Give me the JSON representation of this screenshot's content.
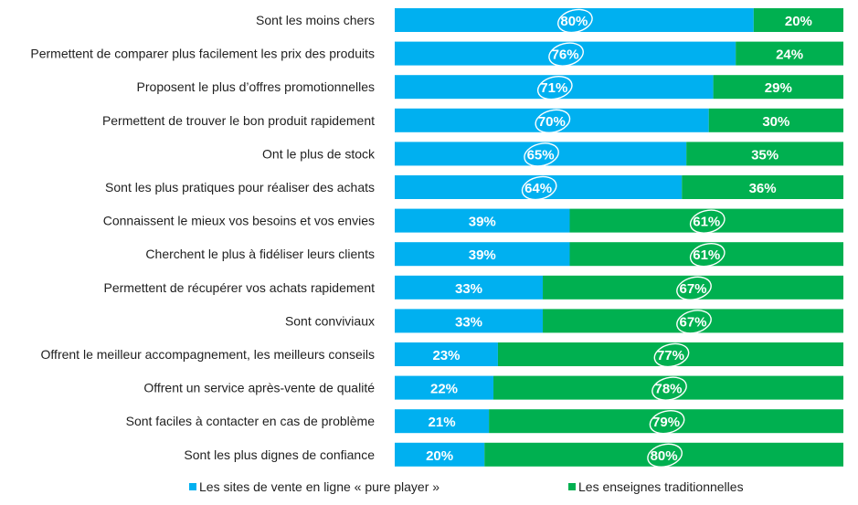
{
  "chart_data": {
    "type": "bar",
    "orientation": "horizontal",
    "stacked": true,
    "percent_stacked": true,
    "xlim": [
      0,
      100
    ],
    "grid": false,
    "legend_position": "bottom",
    "categories": [
      "Sont les moins chers",
      "Permettent de comparer plus facilement les prix des produits",
      "Proposent le plus d’offres promotionnelles",
      "Permettent de trouver le bon produit rapidement",
      "Ont le plus de stock",
      "Sont les plus pratiques pour réaliser des achats",
      "Connaissent le mieux vos besoins et vos envies",
      "Cherchent le plus à fidéliser leurs clients",
      "Permettent de récupérer vos achats rapidement",
      "Sont conviviaux",
      "Offrent le meilleur accompagnement, les meilleurs conseils",
      "Offrent un service après-vente de qualité",
      "Sont faciles à contacter en cas de problème",
      "Sont les plus dignes de confiance"
    ],
    "series": [
      {
        "name": "Les sites de vente en ligne « pure player »",
        "color": "#00b0f0",
        "values": [
          80,
          76,
          71,
          70,
          65,
          64,
          39,
          39,
          33,
          33,
          23,
          22,
          21,
          20
        ]
      },
      {
        "name": "Les enseignes traditionnelles",
        "color": "#00b050",
        "values": [
          20,
          24,
          29,
          30,
          35,
          36,
          61,
          61,
          67,
          67,
          77,
          78,
          79,
          80
        ]
      }
    ]
  }
}
